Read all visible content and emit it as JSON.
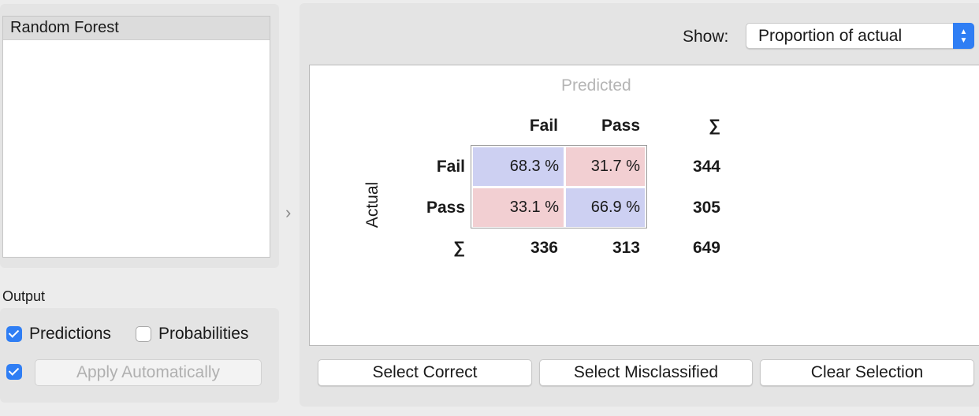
{
  "learners": {
    "items": [
      "Random Forest"
    ]
  },
  "output": {
    "label": "Output",
    "predictions": {
      "label": "Predictions",
      "checked": true
    },
    "probabilities": {
      "label": "Probabilities",
      "checked": false
    },
    "auto_apply": {
      "checked": true,
      "button_label": "Apply Automatically"
    }
  },
  "show": {
    "label": "Show:",
    "value": "Proportion of actual"
  },
  "matrix": {
    "predicted_label": "Predicted",
    "actual_label": "Actual",
    "col_headers": [
      "Fail",
      "Pass"
    ],
    "row_headers": [
      "Fail",
      "Pass"
    ],
    "sum_symbol": "∑",
    "cells": [
      [
        "68.3 %",
        "31.7 %"
      ],
      [
        "33.1 %",
        "66.9 %"
      ]
    ],
    "row_totals": [
      "344",
      "305"
    ],
    "col_totals": [
      "336",
      "313"
    ],
    "grand_total": "649"
  },
  "buttons": {
    "select_correct": "Select Correct",
    "select_misclassified": "Select Misclassified",
    "clear_selection": "Clear Selection"
  },
  "colors": {
    "accent": "#2f7ef4",
    "correct_cell": "#cdd0f2",
    "wrong_cell": "#f2cfd2"
  }
}
